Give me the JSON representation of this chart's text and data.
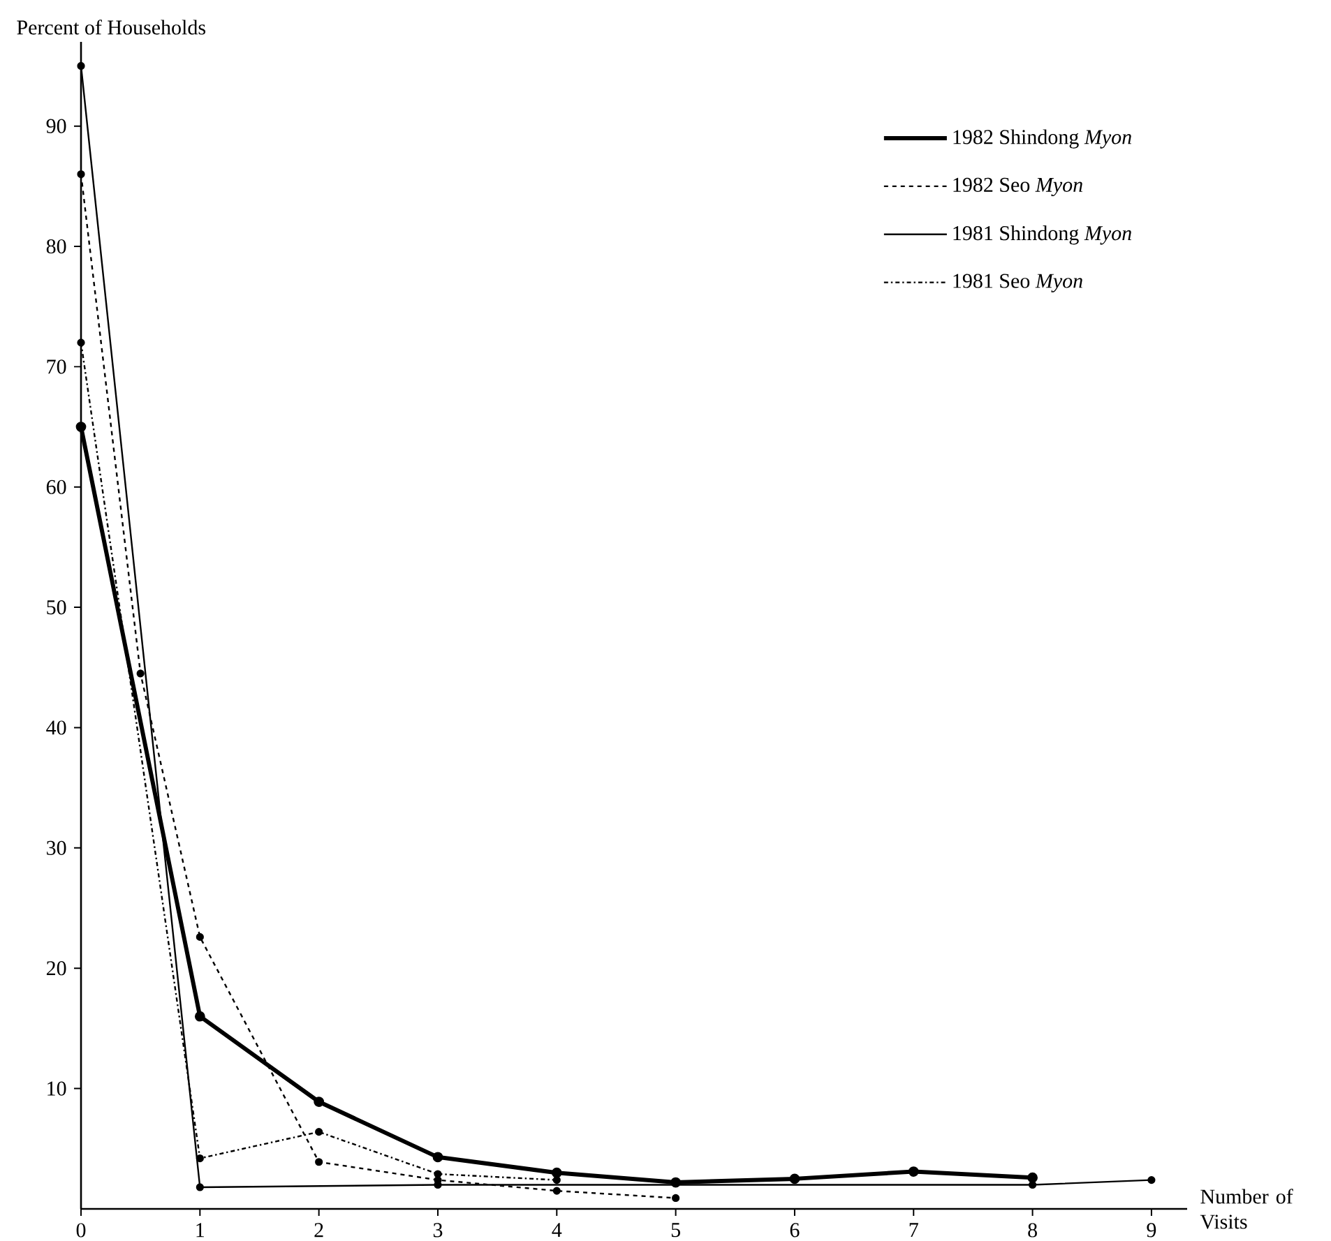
{
  "chart_data": {
    "type": "line",
    "ylabel": "Percent of Households",
    "xlabel": "Number of Visits",
    "xlim": [
      0,
      9.3
    ],
    "xticks": [
      0,
      1,
      2,
      3,
      4,
      5,
      6,
      7,
      8,
      9
    ],
    "ylim": [
      0,
      97
    ],
    "yticks": [
      10,
      20,
      30,
      40,
      50,
      60,
      70,
      80,
      90
    ],
    "grid": false,
    "legend": "top right",
    "marker": "circle",
    "series": [
      {
        "name": "1982 Shindong *Myon*",
        "color": "#000000",
        "line_style": "solid",
        "x": [
          0,
          1,
          2,
          3,
          4,
          5,
          6,
          7,
          8
        ],
        "values": [
          65,
          16,
          8.9,
          4.3,
          3,
          2.2,
          2.5,
          3.1,
          2.6
        ]
      },
      {
        "name": "1982 Seo *Myon*",
        "color": "#000000",
        "line_style": "dashed",
        "x": [
          0,
          0.5,
          1,
          2,
          3,
          4,
          5
        ],
        "values": [
          86,
          44.5,
          22.6,
          3.9,
          2.4,
          1.5,
          0.9
        ]
      },
      {
        "name": "1981 Shindong *Myon*",
        "color": "#000000",
        "line_style": "solid",
        "x": [
          0,
          1,
          3,
          4,
          8,
          9
        ],
        "values": [
          95,
          1.8,
          2,
          null,
          2,
          2.4
        ]
      },
      {
        "name": "1981 Seo *Myon*",
        "color": "#000000",
        "line_style": "dashdot",
        "x": [
          0,
          1,
          2,
          3,
          4
        ],
        "values": [
          72,
          4.2,
          6.4,
          2.9,
          2.4
        ]
      }
    ]
  }
}
